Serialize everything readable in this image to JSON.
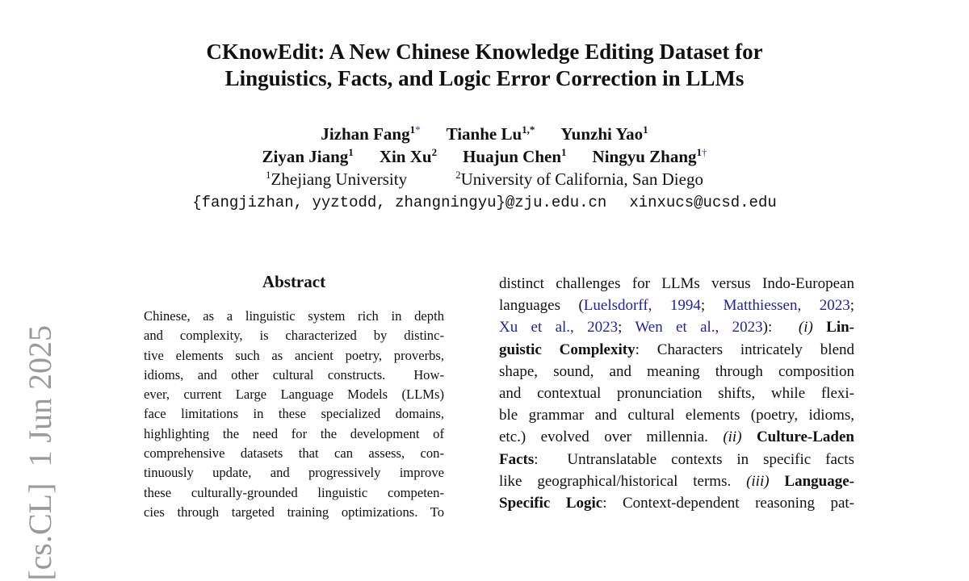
{
  "stamp": "[cs.CL]  1 Jun 2025",
  "title": [
    "CKnowEdit: A New Chinese Knowledge Editing Dataset for",
    "Linguistics, Facts, and Logic Error Correction in LLMs"
  ],
  "authors": [
    [
      {
        "name": "Jizhan Fang",
        "sup": "1",
        "mark": "*"
      },
      {
        "name": "Tianhe Lu",
        "sup": "1,*"
      },
      {
        "name": "Yunzhi Yao",
        "sup": "1"
      }
    ],
    [
      {
        "name": "Ziyan Jiang",
        "sup": "1"
      },
      {
        "name": "Xin Xu",
        "sup": "2"
      },
      {
        "name": "Huajun Chen",
        "sup": "1"
      },
      {
        "name": "Ningyu Zhang",
        "sup": "1",
        "mark": "†"
      }
    ]
  ],
  "affiliations": [
    {
      "sup": "1",
      "name": "Zhejiang University"
    },
    {
      "sup": "2",
      "name": "University of California, San Diego"
    }
  ],
  "emails": [
    "{fangjizhan, yyztodd, zhangningyu}@zju.edu.cn",
    "xinxucs@ucsd.edu"
  ],
  "abstract": {
    "heading": "Abstract",
    "lines": [
      "Chinese, as a linguistic system rich in depth",
      "and complexity, is characterized by distinc-",
      "tive elements such as ancient poetry, proverbs,",
      "idioms, and other cultural constructs.  How-",
      "ever, current Large Language Models (LLMs)",
      "face limitations in these specialized domains,",
      "highlighting the need for the development of",
      "comprehensive datasets that can assess, con-",
      "tinuously update, and progressively improve",
      "these culturally-grounded linguistic competen-",
      "cies through targeted training optimizations. To"
    ]
  },
  "right_column": {
    "lines": [
      [
        {
          "text": "distinct challenges for LLMs versus Indo-European"
        }
      ],
      [
        {
          "text": "languages ("
        },
        {
          "text": "Luelsdorff, 1994",
          "style": "link"
        },
        {
          "text": "; "
        },
        {
          "text": "Matthiessen, 2023",
          "style": "link"
        },
        {
          "text": ";"
        }
      ],
      [
        {
          "text": "Xu et al., 2023",
          "style": "link"
        },
        {
          "text": "; "
        },
        {
          "text": "Wen et al., 2023",
          "style": "link"
        },
        {
          "text": "):  "
        },
        {
          "text": "(i)",
          "style": "italic"
        },
        {
          "text": " "
        },
        {
          "text": "Lin-",
          "style": "bold"
        }
      ],
      [
        {
          "text": "guistic Complexity",
          "style": "bold"
        },
        {
          "text": ": Characters intricately blend"
        }
      ],
      [
        {
          "text": "shape, sound, and meaning through composition"
        }
      ],
      [
        {
          "text": "and contextual pronunciation shifts, while flexi-"
        }
      ],
      [
        {
          "text": "ble grammar and cultural elements (poetry, idioms,"
        }
      ],
      [
        {
          "text": "etc.) evolved over millennia. "
        },
        {
          "text": "(ii)",
          "style": "italic"
        },
        {
          "text": " "
        },
        {
          "text": "Culture-Laden",
          "style": "bold"
        }
      ],
      [
        {
          "text": "Facts",
          "style": "bold"
        },
        {
          "text": ":  Untranslatable contexts in specific facts"
        }
      ],
      [
        {
          "text": "like geographical/historical terms. "
        },
        {
          "text": "(iii)",
          "style": "italic"
        },
        {
          "text": " "
        },
        {
          "text": "Language-",
          "style": "bold"
        }
      ],
      [
        {
          "text": "Specific Logic",
          "style": "bold"
        },
        {
          "text": ": Context-dependent reasoning pat-"
        }
      ]
    ]
  }
}
